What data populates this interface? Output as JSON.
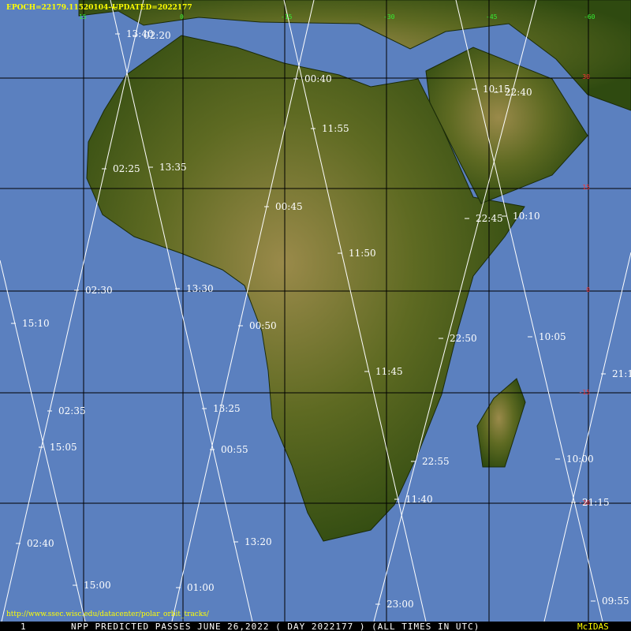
{
  "header": {
    "epoch": "EPOCH=22179.11520104---",
    "updated": "UPDATED=2022177"
  },
  "longitude_labels": [
    "15",
    "0",
    "-15",
    "-30",
    "-45",
    "-60"
  ],
  "latitude_labels": [
    "30",
    "15",
    "0",
    "-15",
    "-30"
  ],
  "pass_times": [
    "13:40",
    "02:20",
    "00:40",
    "10:15",
    "22:40",
    "11:55",
    "02:25",
    "13:35",
    "00:45",
    "22:45",
    "10:10",
    "11:50",
    "02:30",
    "13:30",
    "15:10",
    "00:50",
    "22:50",
    "10:05",
    "11:45",
    "21:1",
    "02:35",
    "13:25",
    "15:05",
    "00:55",
    "22:55",
    "10:00",
    "11:40",
    "21:15",
    "02:40",
    "13:20",
    "15:00",
    "01:00",
    "23:00",
    "09:55"
  ],
  "source_url": "http://www.ssec.wisc.edu/datacenter/polar_orbit_tracks/",
  "footer": {
    "frame": "1",
    "title": "NPP PREDICTED PASSES JUNE 26,2022 ( DAY 2022177 ) (ALL TIMES IN UTC)",
    "software": "McIDAS"
  }
}
